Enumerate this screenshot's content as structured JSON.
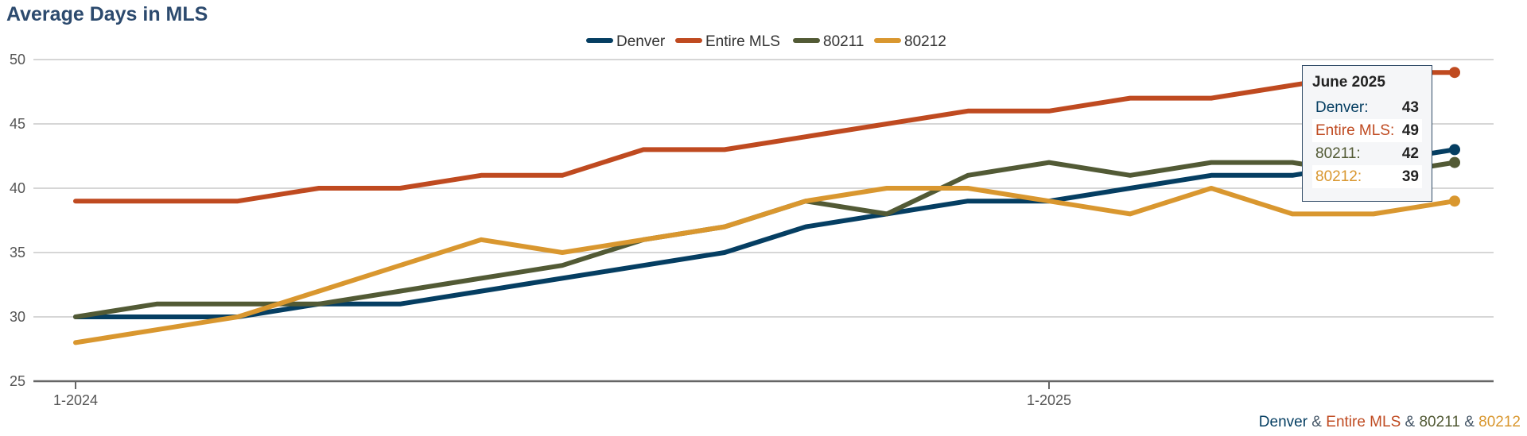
{
  "colors": {
    "denver": "#053e62",
    "entire_mls": "#bf4a20",
    "z80211": "#525a35",
    "z80212": "#d9972f",
    "grid": "#c8c8c8",
    "axis": "#666666"
  },
  "tooltip": {
    "title": "June 2025",
    "rows": [
      {
        "label": "Denver:",
        "value": "43"
      },
      {
        "label": "Entire MLS:",
        "value": "49"
      },
      {
        "label": "80211:",
        "value": "42"
      },
      {
        "label": "80212:",
        "value": "39"
      }
    ]
  },
  "credits": {
    "parts": [
      "Denver",
      "Entire MLS",
      "80211",
      "80212"
    ],
    "separator": " & "
  },
  "chart_data": {
    "type": "line",
    "title": "Average Days in MLS",
    "xlabel": "",
    "ylabel": "",
    "ylim": [
      25,
      50
    ],
    "yticks": [
      25,
      30,
      35,
      40,
      45,
      50
    ],
    "grid": true,
    "legend_position": "top-center",
    "x": [
      "1-2024",
      "2-2024",
      "3-2024",
      "4-2024",
      "5-2024",
      "6-2024",
      "7-2024",
      "8-2024",
      "9-2024",
      "10-2024",
      "11-2024",
      "12-2024",
      "1-2025",
      "2-2025",
      "3-2025",
      "4-2025",
      "5-2025",
      "6-2025"
    ],
    "xtick_labels": [
      {
        "index": 0,
        "label": "1-2024"
      },
      {
        "index": 12,
        "label": "1-2025"
      }
    ],
    "series": [
      {
        "name": "Denver",
        "key": "denver",
        "values": [
          30,
          30,
          30,
          31,
          31,
          32,
          33,
          34,
          35,
          37,
          38,
          39,
          39,
          40,
          41,
          41,
          42,
          43
        ]
      },
      {
        "name": "Entire MLS",
        "key": "entire_mls",
        "values": [
          39,
          39,
          39,
          40,
          40,
          41,
          41,
          43,
          43,
          44,
          45,
          46,
          46,
          47,
          47,
          48,
          49,
          49
        ]
      },
      {
        "name": "80211",
        "key": "z80211",
        "values": [
          30,
          31,
          31,
          31,
          32,
          33,
          34,
          36,
          37,
          39,
          38,
          41,
          42,
          41,
          42,
          42,
          41,
          42
        ]
      },
      {
        "name": "80212",
        "key": "z80212",
        "values": [
          28,
          29,
          30,
          32,
          34,
          36,
          35,
          36,
          37,
          39,
          40,
          40,
          39,
          38,
          40,
          38,
          38,
          39
        ]
      }
    ]
  }
}
